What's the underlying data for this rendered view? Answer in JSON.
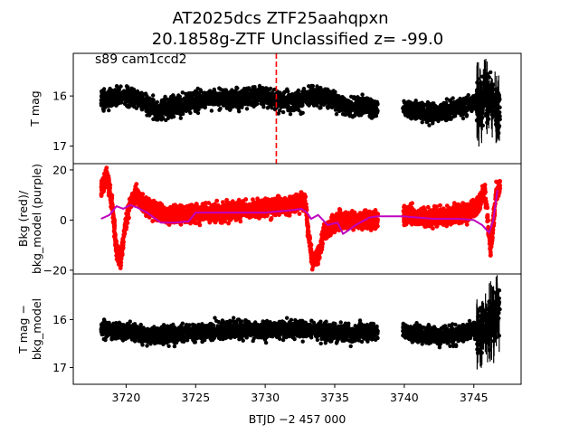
{
  "title_line1": "AT2025dcs  ZTF25aahqpxn",
  "title_line2": "20.1858g-ZTF Unclassified z= -99.0",
  "colors": {
    "flux": "#000000",
    "bkg": "#ff0000",
    "bkg_model": "#bf00bf",
    "marker_line": "#ff0000"
  },
  "chart_data": [
    {
      "type": "scatter",
      "panel": "top",
      "ylabel": "T mag",
      "annotation": "s89 cam1ccd2",
      "xlim": [
        3716.2,
        3748.4
      ],
      "ylim": [
        17.35,
        15.15
      ],
      "yinverted": true,
      "y_ticks": [
        16,
        17
      ],
      "y_tick_labels": [
        "16",
        "17"
      ],
      "vertical_marker_x": 3730.8,
      "series": [
        {
          "segments": [
            {
              "x0": 3718.2,
              "x1": 3738.1,
              "points": [
                [
                  3718.2,
                  16.1
                ],
                [
                  3719.5,
                  16.0
                ],
                [
                  3721,
                  16.05
                ],
                [
                  3722.3,
                  16.3
                ],
                [
                  3723.5,
                  16.2
                ],
                [
                  3725,
                  16.1
                ],
                [
                  3726.5,
                  16.05
                ],
                [
                  3728,
                  16.05
                ],
                [
                  3729.5,
                  16.0
                ],
                [
                  3731,
                  16.1
                ],
                [
                  3732.5,
                  16.1
                ],
                [
                  3733.5,
                  16.0
                ],
                [
                  3734.5,
                  16.05
                ],
                [
                  3736,
                  16.25
                ],
                [
                  3737.2,
                  16.2
                ],
                [
                  3738.1,
                  16.25
                ]
              ],
              "spread": 0.32
            },
            {
              "x0": 3739.9,
              "x1": 3745.2,
              "points": [
                [
                  3739.9,
                  16.25
                ],
                [
                  3741,
                  16.3
                ],
                [
                  3742.5,
                  16.35
                ],
                [
                  3743.5,
                  16.25
                ],
                [
                  3744.5,
                  16.2
                ],
                [
                  3745.2,
                  16.1
                ]
              ],
              "spread": 0.3
            },
            {
              "x0": 3745.2,
              "x1": 3746.9,
              "points": [
                [
                  3745.2,
                  16.2
                ],
                [
                  3746,
                  16.0
                ],
                [
                  3746.9,
                  16.4
                ]
              ],
              "spread": 0.75,
              "errorbars": true
            }
          ]
        }
      ]
    },
    {
      "type": "scatter",
      "panel": "middle",
      "ylabel": "Bkg (red)/\nbkg_model (purple)",
      "xlim": [
        3716.2,
        3748.4
      ],
      "ylim": [
        -21.5,
        22.5
      ],
      "y_ticks": [
        20,
        0,
        -20
      ],
      "y_tick_labels": [
        "20",
        "0",
        "−20"
      ],
      "series": [
        {
          "name": "Bkg",
          "segments": [
            {
              "x0": 3718.2,
              "x1": 3738.1,
              "points": [
                [
                  3718.2,
                  12
                ],
                [
                  3718.6,
                  18
                ],
                [
                  3719.0,
                  6
                ],
                [
                  3719.3,
                  -12
                ],
                [
                  3719.6,
                  -16
                ],
                [
                  3719.9,
                  -4
                ],
                [
                  3720.3,
                  8
                ],
                [
                  3720.8,
                  10
                ],
                [
                  3721.3,
                  6
                ],
                [
                  3722,
                  4
                ],
                [
                  3723,
                  2
                ],
                [
                  3724,
                  2
                ],
                [
                  3725,
                  3
                ],
                [
                  3726,
                  3
                ],
                [
                  3727,
                  3
                ],
                [
                  3728,
                  4
                ],
                [
                  3729,
                  4
                ],
                [
                  3730,
                  5
                ],
                [
                  3731,
                  6
                ],
                [
                  3732,
                  6
                ],
                [
                  3732.9,
                  8
                ],
                [
                  3733.1,
                  -6
                ],
                [
                  3733.4,
                  -16
                ],
                [
                  3733.8,
                  -14
                ],
                [
                  3734.2,
                  -6
                ],
                [
                  3734.8,
                  -2
                ],
                [
                  3735.5,
                  0
                ],
                [
                  3736.5,
                  0
                ],
                [
                  3737.5,
                  0
                ],
                [
                  3738.1,
                  0
                ]
              ],
              "spread": 6
            },
            {
              "x0": 3739.9,
              "x1": 3746.9,
              "points": [
                [
                  3739.9,
                  2
                ],
                [
                  3740.5,
                  2
                ],
                [
                  3741.5,
                  1
                ],
                [
                  3742.5,
                  1
                ],
                [
                  3743.5,
                  2
                ],
                [
                  3744.5,
                  3
                ],
                [
                  3745.3,
                  6
                ],
                [
                  3745.8,
                  12
                ],
                [
                  3746.2,
                  -12
                ],
                [
                  3746.6,
                  10
                ],
                [
                  3746.9,
                  14
                ]
              ],
              "spread": 6
            }
          ]
        },
        {
          "name": "bkg_model",
          "line": [
            [
              3718.2,
              0.5
            ],
            [
              3718.8,
              2
            ],
            [
              3719.3,
              5.5
            ],
            [
              3719.8,
              4.5
            ],
            [
              3720.3,
              6
            ],
            [
              3720.8,
              5
            ],
            [
              3721.5,
              3
            ],
            [
              3722.5,
              -1
            ],
            [
              3723.5,
              -1
            ],
            [
              3724.5,
              -0.5
            ],
            [
              3725,
              3
            ],
            [
              3726,
              3
            ],
            [
              3727,
              3
            ],
            [
              3728,
              3
            ],
            [
              3729,
              3
            ],
            [
              3730,
              3
            ],
            [
              3731,
              3.5
            ],
            [
              3732,
              4
            ],
            [
              3732.6,
              4.5
            ],
            [
              3733,
              3
            ],
            [
              3733.3,
              0.5
            ],
            [
              3733.8,
              2
            ],
            [
              3734.5,
              -2
            ],
            [
              3735.2,
              -1
            ],
            [
              3735.6,
              -5.5
            ],
            [
              3736,
              -4
            ],
            [
              3736.5,
              -2
            ],
            [
              3737.5,
              1
            ],
            [
              3738.1,
              1.5
            ],
            [
              3739.9,
              1.5
            ],
            [
              3741,
              1
            ],
            [
              3742,
              0.5
            ],
            [
              3743,
              0.5
            ],
            [
              3744,
              0.5
            ],
            [
              3745,
              0
            ],
            [
              3745.6,
              -2
            ],
            [
              3746.1,
              -5
            ],
            [
              3746.4,
              0
            ],
            [
              3746.7,
              12
            ]
          ]
        }
      ]
    },
    {
      "type": "scatter",
      "panel": "bottom",
      "ylabel": "T mag −\nbkg_model",
      "xlabel": "BTJD −2 457 000",
      "xlim": [
        3716.2,
        3748.4
      ],
      "ylim": [
        17.35,
        15.05
      ],
      "yinverted": true,
      "x_ticks": [
        3720,
        3725,
        3730,
        3735,
        3740,
        3745
      ],
      "x_tick_labels": [
        "3720",
        "3725",
        "3730",
        "3735",
        "3740",
        "3745"
      ],
      "y_ticks": [
        16,
        17
      ],
      "y_tick_labels": [
        "16",
        "17"
      ],
      "series": [
        {
          "segments": [
            {
              "x0": 3718.2,
              "x1": 3738.1,
              "points": [
                [
                  3718.2,
                  16.2
                ],
                [
                  3720,
                  16.25
                ],
                [
                  3722,
                  16.35
                ],
                [
                  3724,
                  16.3
                ],
                [
                  3726,
                  16.25
                ],
                [
                  3728,
                  16.2
                ],
                [
                  3730,
                  16.25
                ],
                [
                  3732,
                  16.2
                ],
                [
                  3734,
                  16.25
                ],
                [
                  3736,
                  16.3
                ],
                [
                  3738.1,
                  16.25
                ]
              ],
              "spread": 0.3
            },
            {
              "x0": 3739.9,
              "x1": 3745.2,
              "points": [
                [
                  3739.9,
                  16.25
                ],
                [
                  3742,
                  16.35
                ],
                [
                  3744,
                  16.3
                ],
                [
                  3745.2,
                  16.2
                ]
              ],
              "spread": 0.3
            },
            {
              "x0": 3745.2,
              "x1": 3746.9,
              "points": [
                [
                  3745.2,
                  16.3
                ],
                [
                  3746,
                  16.1
                ],
                [
                  3746.9,
                  15.8
                ]
              ],
              "spread": 0.8,
              "errorbars": true
            }
          ]
        }
      ]
    }
  ]
}
